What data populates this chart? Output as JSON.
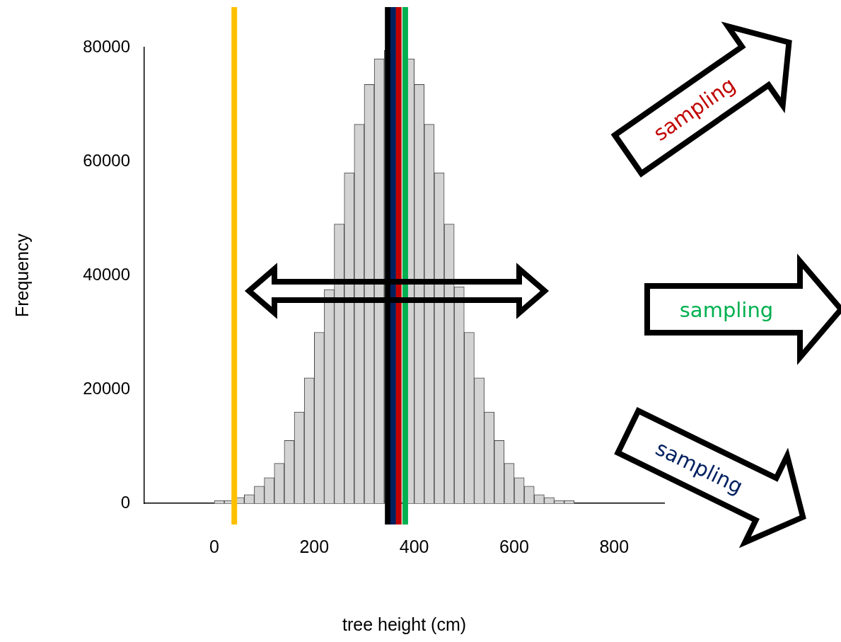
{
  "chart_data": {
    "type": "histogram",
    "xlabel": "tree height (cm)",
    "ylabel": "Frequency",
    "bins": [
      -140,
      -120,
      -100,
      -80,
      -60,
      -40,
      -20,
      0,
      20,
      40,
      60,
      80,
      100,
      120,
      140,
      160,
      180,
      200,
      220,
      240,
      260,
      280,
      300,
      320,
      340,
      360,
      380,
      400,
      420,
      440,
      460,
      480,
      500,
      520,
      540,
      560,
      580,
      600,
      620,
      640,
      660,
      680,
      700,
      720,
      740,
      760,
      780,
      800,
      820,
      840,
      860,
      880,
      900
    ],
    "values": [
      0,
      0,
      0,
      0,
      0,
      0,
      0,
      500,
      500,
      1000,
      1500,
      3000,
      4500,
      7000,
      11000,
      16000,
      22000,
      30000,
      37500,
      49000,
      58000,
      66500,
      73500,
      78000,
      79500,
      null,
      78000,
      73500,
      66500,
      58000,
      49000,
      38000,
      30000,
      22000,
      16000,
      11000,
      7000,
      4500,
      3000,
      1500,
      1000,
      500,
      500,
      0,
      0,
      0,
      0,
      0,
      0,
      0,
      0,
      0
    ],
    "color": "#d3d3d3",
    "xlim": [
      -140,
      900
    ],
    "xticks": [
      0,
      200,
      400,
      600,
      800
    ],
    "ylim": [
      0,
      80000
    ],
    "yticks": [
      0,
      20000,
      40000,
      60000,
      80000
    ],
    "ref_lines": [
      {
        "axis": "x",
        "value": 40,
        "color": "#ffc000"
      },
      {
        "axis": "x",
        "value": 347,
        "color": "#000000"
      },
      {
        "axis": "x",
        "value": 358,
        "color": "#002060"
      },
      {
        "axis": "x",
        "value": 369,
        "color": "#c00000"
      },
      {
        "axis": "x",
        "value": 382,
        "color": "#00b050"
      }
    ],
    "annotations": [
      "sampling",
      "sampling",
      "sampling"
    ],
    "grid": false,
    "legend": false
  }
}
